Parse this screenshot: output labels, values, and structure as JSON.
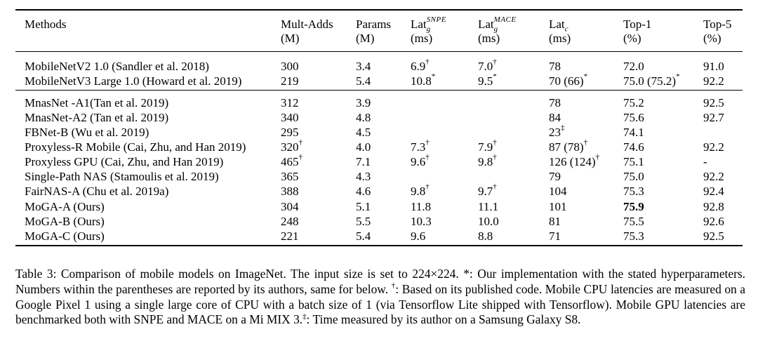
{
  "table": {
    "headers": [
      {
        "key": "methods",
        "line1": "Methods",
        "line2": ""
      },
      {
        "key": "multadds",
        "line1": "Mult-Adds",
        "line2": "(M)"
      },
      {
        "key": "params",
        "line1": "Params",
        "line2": "(M)"
      },
      {
        "key": "lat_snpe",
        "line1": "Lat",
        "sub": "g",
        "sup": "SNPE",
        "line2": "(ms)"
      },
      {
        "key": "lat_mace",
        "line1": "Lat",
        "sub": "g",
        "sup": "MACE",
        "line2": "(ms)"
      },
      {
        "key": "lat_c",
        "line1": "Lat",
        "sub": "c",
        "sup": "",
        "line2": "(ms)"
      },
      {
        "key": "top1",
        "line1": "Top-1",
        "line2": "(%)"
      },
      {
        "key": "top5",
        "line1": "Top-5",
        "line2": "(%)"
      }
    ],
    "rows": [
      {
        "method": "MobileNetV2 1.0 (Sandler et al. 2018)",
        "multadds": "300",
        "multadds_mark": "",
        "params": "3.4",
        "lat_snpe": "6.9",
        "lat_snpe_mark": "†",
        "lat_mace": "7.0",
        "lat_mace_mark": "†",
        "lat_c": "78",
        "lat_c_mark": "",
        "top1": "72.0",
        "top1_mark": "",
        "top5": "91.0"
      },
      {
        "method": "MobileNetV3 Large 1.0 (Howard et al. 2019)",
        "multadds": "219",
        "multadds_mark": "",
        "params": "5.4",
        "lat_snpe": "10.8",
        "lat_snpe_mark": "*",
        "lat_mace": "9.5",
        "lat_mace_mark": "*",
        "lat_c": "70 (66)",
        "lat_c_mark": "*",
        "top1": "75.0 (75.2)",
        "top1_mark": "*",
        "top5": "92.2"
      },
      {
        "method": "MnasNet -A1(Tan et al. 2019)",
        "multadds": "312",
        "multadds_mark": "",
        "params": "3.9",
        "lat_snpe": "",
        "lat_snpe_mark": "",
        "lat_mace": "",
        "lat_mace_mark": "",
        "lat_c": "78",
        "lat_c_mark": "",
        "top1": "75.2",
        "top1_mark": "",
        "top5": "92.5"
      },
      {
        "method": "MnasNet-A2 (Tan et al. 2019)",
        "multadds": "340",
        "multadds_mark": "",
        "params": "4.8",
        "lat_snpe": "",
        "lat_snpe_mark": "",
        "lat_mace": "",
        "lat_mace_mark": "",
        "lat_c": "84",
        "lat_c_mark": "",
        "top1": "75.6",
        "top1_mark": "",
        "top5": "92.7"
      },
      {
        "method": "FBNet-B (Wu et al. 2019)",
        "multadds": "295",
        "multadds_mark": "",
        "params": "4.5",
        "lat_snpe": "",
        "lat_snpe_mark": "",
        "lat_mace": "",
        "lat_mace_mark": "",
        "lat_c": "23",
        "lat_c_mark": "‡",
        "top1": "74.1",
        "top1_mark": "",
        "top5": ""
      },
      {
        "method": "Proxyless-R Mobile (Cai, Zhu, and Han 2019)",
        "multadds": "320",
        "multadds_mark": "†",
        "params": "4.0",
        "lat_snpe": "7.3",
        "lat_snpe_mark": "†",
        "lat_mace": "7.9",
        "lat_mace_mark": "†",
        "lat_c": "87 (78)",
        "lat_c_mark": "†",
        "top1": "74.6",
        "top1_mark": "",
        "top5": "92.2"
      },
      {
        "method": "Proxyless GPU (Cai, Zhu, and Han 2019)",
        "multadds": "465",
        "multadds_mark": "†",
        "params": "7.1",
        "lat_snpe": "9.6",
        "lat_snpe_mark": "†",
        "lat_mace": "9.8",
        "lat_mace_mark": "†",
        "lat_c": "126 (124)",
        "lat_c_mark": "†",
        "top1": "75.1",
        "top1_mark": "",
        "top5": "-"
      },
      {
        "method": "Single-Path NAS (Stamoulis et al. 2019)",
        "multadds": "365",
        "multadds_mark": "",
        "params": "4.3",
        "lat_snpe": "",
        "lat_snpe_mark": "",
        "lat_mace": "",
        "lat_mace_mark": "",
        "lat_c": "79",
        "lat_c_mark": "",
        "top1": "75.0",
        "top1_mark": "",
        "top5": "92.2"
      },
      {
        "method": "FairNAS-A (Chu et al. 2019a)",
        "multadds": "388",
        "multadds_mark": "",
        "params": "4.6",
        "lat_snpe": "9.8",
        "lat_snpe_mark": "†",
        "lat_mace": "9.7",
        "lat_mace_mark": "†",
        "lat_c": "104",
        "lat_c_mark": "",
        "top1": "75.3",
        "top1_mark": "",
        "top5": "92.4"
      },
      {
        "method": "MoGA-A (Ours)",
        "multadds": "304",
        "multadds_mark": "",
        "params": "5.1",
        "lat_snpe": "11.8",
        "lat_snpe_mark": "",
        "lat_mace": "11.1",
        "lat_mace_mark": "",
        "lat_c": "101",
        "lat_c_mark": "",
        "top1": "75.9",
        "top1_mark": "",
        "top1_bold": true,
        "top5": "92.8"
      },
      {
        "method": "MoGA-B (Ours)",
        "multadds": "248",
        "multadds_mark": "",
        "params": "5.5",
        "lat_snpe": "10.3",
        "lat_snpe_mark": "",
        "lat_mace": "10.0",
        "lat_mace_mark": "",
        "lat_c": "81",
        "lat_c_mark": "",
        "top1": "75.5",
        "top1_mark": "",
        "top5": "92.6"
      },
      {
        "method": "MoGA-C (Ours)",
        "multadds": "221",
        "multadds_mark": "",
        "params": "5.4",
        "lat_snpe": "9.6",
        "lat_snpe_mark": "",
        "lat_mace": "8.8",
        "lat_mace_mark": "",
        "lat_c": "71",
        "lat_c_mark": "",
        "top1": "75.3",
        "top1_mark": "",
        "top5": "92.5"
      }
    ]
  },
  "caption": {
    "part1": "Table 3: Comparison of mobile models on ImageNet. The input size is set to 224×224. *: Our implementation with the stated hyperparameters. Numbers within the parentheses are reported by its authors, same for below. ",
    "mark1": "†",
    "part2": ": Based on its published code. Mobile CPU latencies are measured on a Google Pixel 1 using a single large core of CPU with a batch size of 1 (via Tensorflow Lite shipped with Tensorflow). Mobile GPU latencies are benchmarked both with SNPE and MACE on a Mi MIX 3.",
    "mark2": "‡",
    "part3": ": Time measured by its author on a Samsung Galaxy S8."
  }
}
